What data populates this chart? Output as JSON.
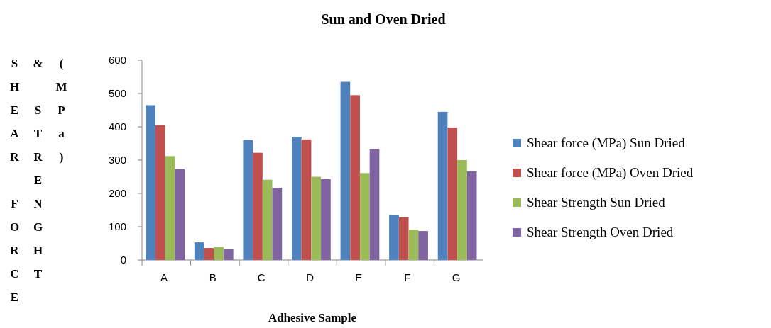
{
  "chart_data": {
    "type": "bar",
    "title": "Sun and Oven Dried",
    "xlabel": "Adhesive Sample",
    "ylabel": "SHEAR FORCE & STRENGHT (MPa)",
    "categories": [
      "A",
      "B",
      "C",
      "D",
      "E",
      "F",
      "G"
    ],
    "series": [
      {
        "name": "Shear force (MPa) Sun Dried",
        "color": "#4f81bd",
        "values": [
          465,
          53,
          360,
          370,
          535,
          135,
          445
        ]
      },
      {
        "name": "Shear force (MPa) Oven Dried",
        "color": "#c0504d",
        "values": [
          405,
          36,
          322,
          362,
          495,
          128,
          398
        ]
      },
      {
        "name": "Shear Strength Sun Dried",
        "color": "#9bbb59",
        "values": [
          312,
          39,
          241,
          250,
          261,
          91,
          300
        ]
      },
      {
        "name": "Shear Strength Oven Dried",
        "color": "#8064a2",
        "values": [
          273,
          32,
          217,
          243,
          333,
          87,
          266
        ]
      }
    ],
    "ylim": [
      0,
      600
    ],
    "yticks": [
      0,
      100,
      200,
      300,
      400,
      500,
      600
    ],
    "legend": "right"
  }
}
